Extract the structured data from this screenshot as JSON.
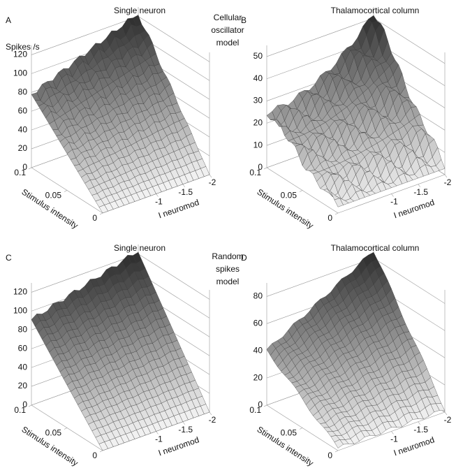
{
  "model_labels": [
    [
      "Cellular",
      "oscillator",
      "model"
    ],
    [
      "Random",
      "spikes",
      "model"
    ]
  ],
  "panels": [
    {
      "letter": "A",
      "title": "Single neuron",
      "zlabel": "Spikes /s",
      "zlim": [
        0,
        130
      ],
      "zticks": [
        0,
        20,
        40,
        60,
        80,
        100,
        120
      ],
      "xlabel": "I neuromod",
      "xticks": [
        -1,
        -1.5,
        -2
      ],
      "ylabel": "Stimulus intensity",
      "yticks": [
        0,
        0.05,
        0.1
      ]
    },
    {
      "letter": "B",
      "title": "Thalamocortical column",
      "zlim": [
        0,
        55
      ],
      "zticks": [
        0,
        10,
        20,
        30,
        40,
        50
      ],
      "xlabel": "I neuromod",
      "xticks": [
        -1,
        -1.5,
        -2
      ],
      "ylabel": "Stimulus intensity",
      "yticks": [
        0,
        0.05,
        0.1
      ]
    },
    {
      "letter": "C",
      "title": "Single neuron",
      "zlim": [
        0,
        130
      ],
      "zticks": [
        0,
        20,
        40,
        60,
        80,
        100,
        120
      ],
      "xlabel": "I neuromod",
      "xticks": [
        -1,
        -1.5,
        -2
      ],
      "ylabel": "Stimulus intensity",
      "yticks": [
        0,
        0.05,
        0.1
      ]
    },
    {
      "letter": "D",
      "title": "Thalamocortical column",
      "zlim": [
        0,
        90
      ],
      "zticks": [
        0,
        20,
        40,
        60,
        80
      ],
      "xlabel": "I neuromod",
      "xticks": [
        -1,
        -1.5,
        -2
      ],
      "ylabel": "Stimulus intensity",
      "yticks": [
        0,
        0.05,
        0.1
      ]
    }
  ]
}
